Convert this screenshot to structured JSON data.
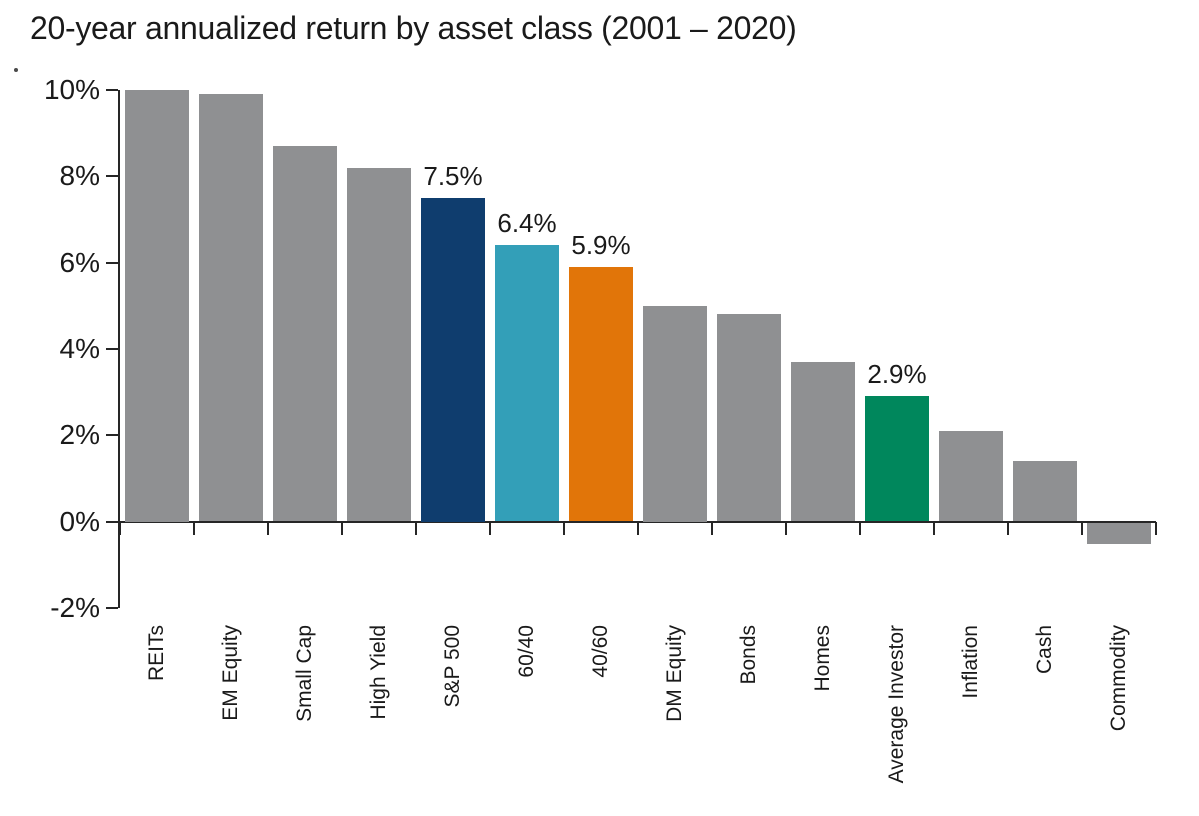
{
  "title": "20-year annualized return by asset class (2001 – 2020)",
  "colors": {
    "gray": "#8F9092",
    "navy": "#0F3D6E",
    "teal": "#339FB8",
    "orange": "#E17509",
    "green": "#00875C",
    "axis": "#262626",
    "text": "#1A1A1A"
  },
  "chart_data": {
    "type": "bar",
    "title": "20-year annualized return by asset class (2001 – 2020)",
    "categories": [
      "REITs",
      "EM Equity",
      "Small Cap",
      "High Yield",
      "S&P 500",
      "60/40",
      "40/60",
      "DM Equity",
      "Bonds",
      "Homes",
      "Average Investor",
      "Inflation",
      "Cash",
      "Commodity"
    ],
    "values": [
      10.0,
      9.9,
      8.7,
      8.2,
      7.5,
      6.4,
      5.9,
      5.0,
      4.8,
      3.7,
      2.9,
      2.1,
      1.4,
      -0.5
    ],
    "bar_colors": [
      "gray",
      "gray",
      "gray",
      "gray",
      "navy",
      "teal",
      "orange",
      "gray",
      "gray",
      "gray",
      "green",
      "gray",
      "gray",
      "gray"
    ],
    "data_labels": [
      "",
      "",
      "",
      "",
      "7.5%",
      "6.4%",
      "5.9%",
      "",
      "",
      "",
      "2.9%",
      "",
      "",
      ""
    ],
    "yticks": [
      "10%",
      "8%",
      "6%",
      "4%",
      "2%",
      "0%",
      "-2%"
    ],
    "ylim": [
      -2,
      10
    ],
    "xlabel": "",
    "ylabel": "",
    "grid": false,
    "legend": null
  }
}
